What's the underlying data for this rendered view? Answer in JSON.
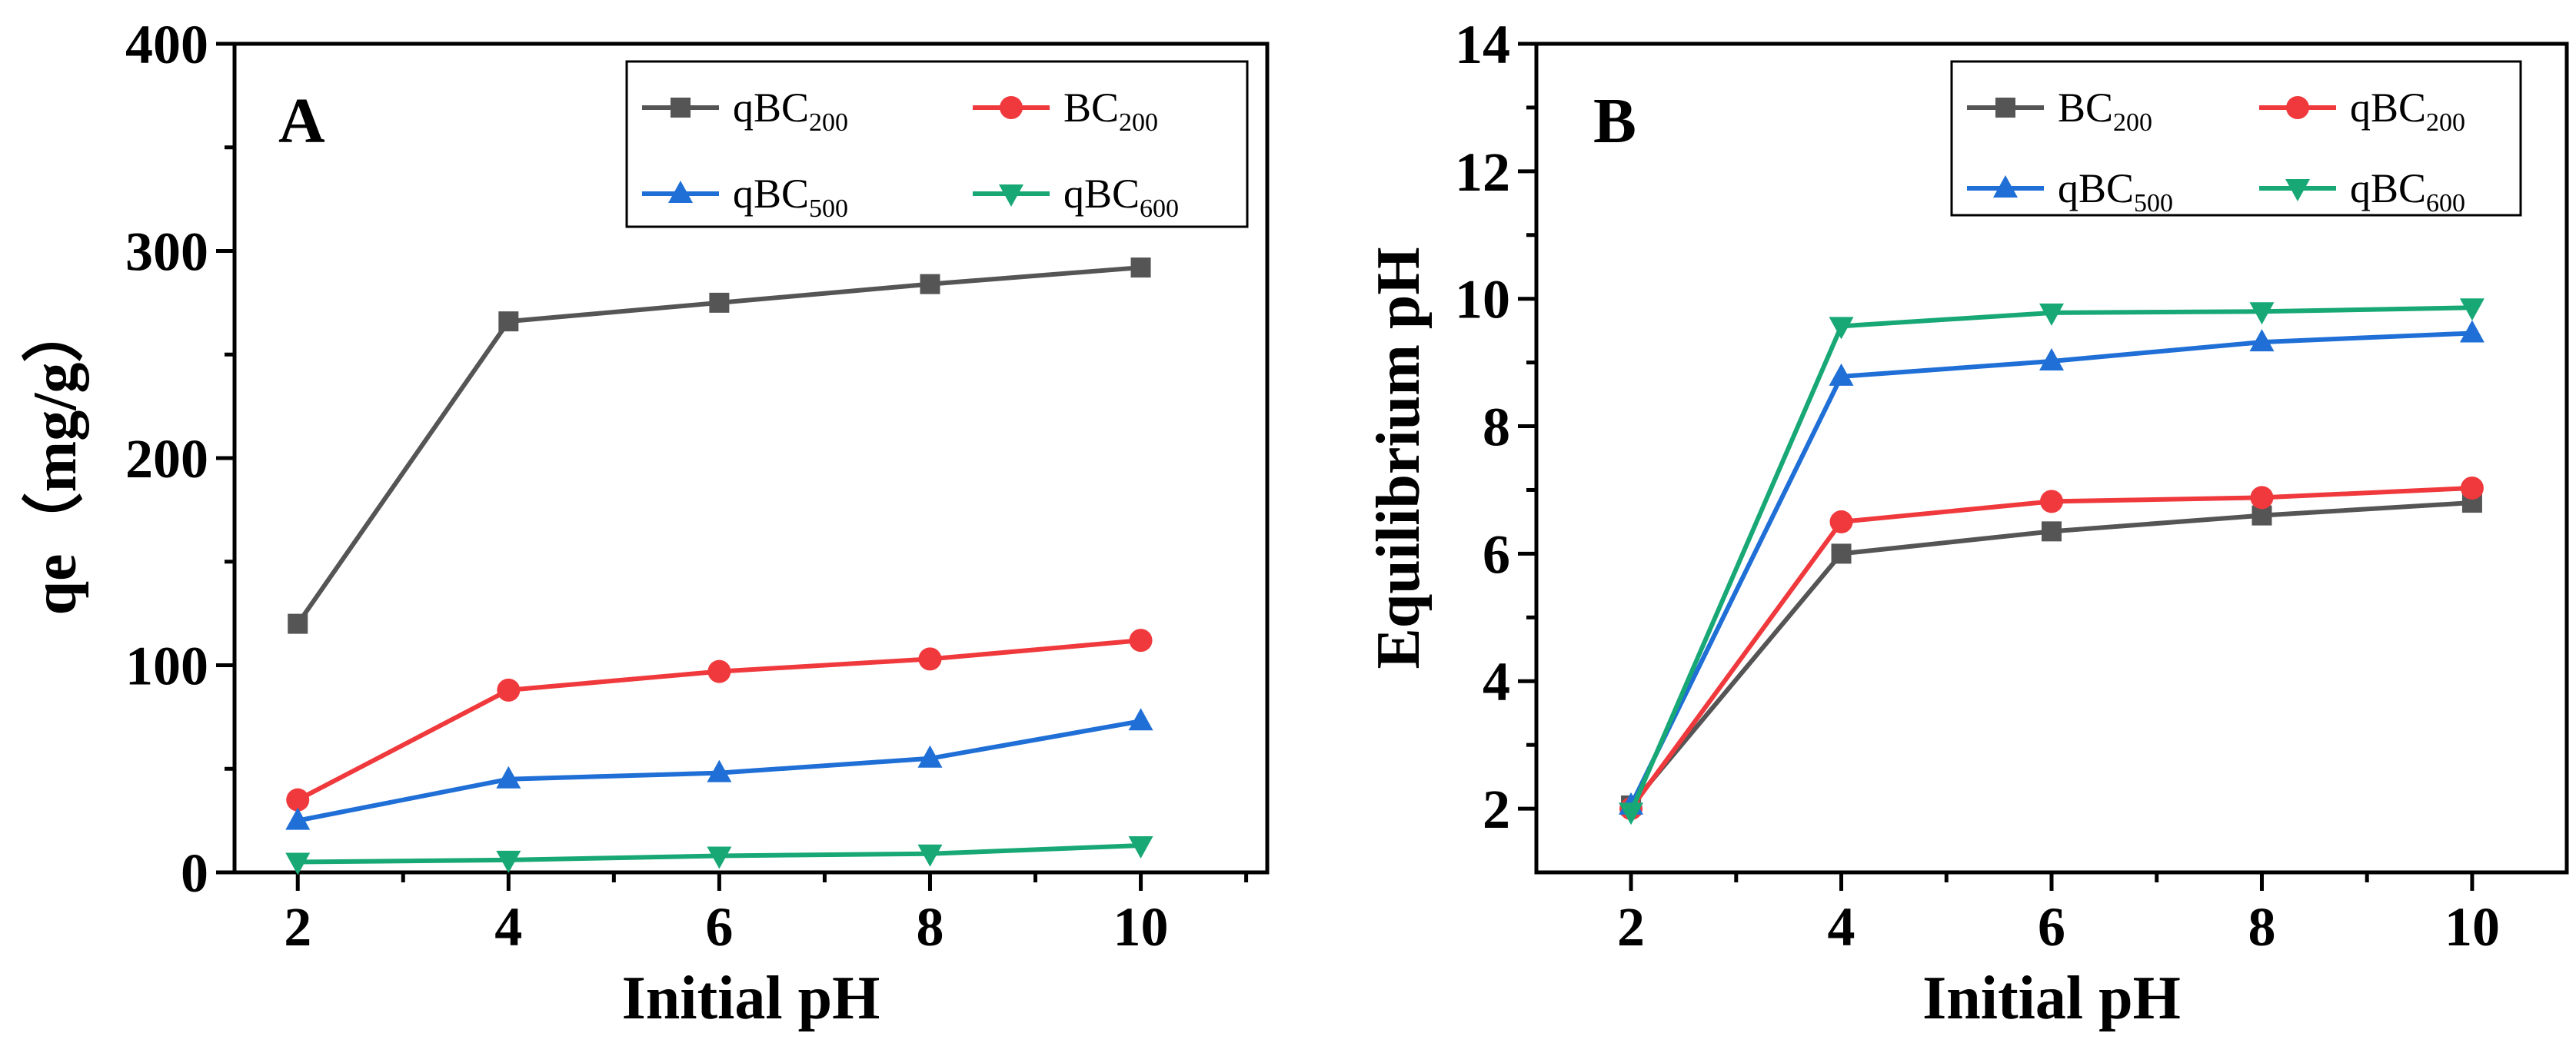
{
  "chart_data": [
    {
      "type": "line",
      "panel_label": "A",
      "xlabel": "Initial pH",
      "ylabel": "qe（mg/g）",
      "xlim": [
        1.4,
        11.2
      ],
      "ylim": [
        0,
        400
      ],
      "xticks": [
        2,
        4,
        6,
        8,
        10
      ],
      "yticks": [
        0,
        100,
        200,
        300,
        400
      ],
      "legend_position": "top-right",
      "x": [
        2,
        4,
        6,
        8,
        10
      ],
      "series": [
        {
          "name": "qBC",
          "subscript": "200",
          "color": "#555555",
          "marker": "square",
          "values": [
            120,
            266,
            275,
            284,
            292
          ]
        },
        {
          "name": "BC",
          "subscript": "200",
          "color": "#f0393c",
          "marker": "circle",
          "values": [
            35,
            88,
            97,
            103,
            112
          ]
        },
        {
          "name": "qBC",
          "subscript": "500",
          "color": "#1f6fd6",
          "marker": "triangle-up",
          "values": [
            25,
            45,
            48,
            55,
            73
          ]
        },
        {
          "name": "qBC",
          "subscript": "600",
          "color": "#17a876",
          "marker": "triangle-down",
          "values": [
            5,
            6,
            8,
            9,
            13
          ]
        }
      ]
    },
    {
      "type": "line",
      "panel_label": "B",
      "xlabel": "Initial pH",
      "ylabel": "Equilibrium pH",
      "xlim": [
        1.1,
        10.9
      ],
      "ylim": [
        1,
        14
      ],
      "xticks": [
        2,
        4,
        6,
        8,
        10
      ],
      "yticks": [
        2,
        4,
        6,
        8,
        10,
        12,
        14
      ],
      "legend_position": "top-right",
      "x": [
        2,
        4,
        6,
        8,
        10
      ],
      "series": [
        {
          "name": "BC",
          "subscript": "200",
          "color": "#555555",
          "marker": "square",
          "values": [
            2.05,
            6.0,
            6.35,
            6.6,
            6.8
          ]
        },
        {
          "name": "qBC",
          "subscript": "200",
          "color": "#f0393c",
          "marker": "circle",
          "values": [
            2.0,
            6.5,
            6.82,
            6.88,
            7.03
          ]
        },
        {
          "name": "qBC",
          "subscript": "500",
          "color": "#1f6fd6",
          "marker": "triangle-up",
          "values": [
            2.05,
            8.78,
            9.02,
            9.32,
            9.46
          ]
        },
        {
          "name": "qBC",
          "subscript": "600",
          "color": "#17a876",
          "marker": "triangle-down",
          "values": [
            1.95,
            9.57,
            9.78,
            9.8,
            9.86
          ]
        }
      ]
    }
  ]
}
